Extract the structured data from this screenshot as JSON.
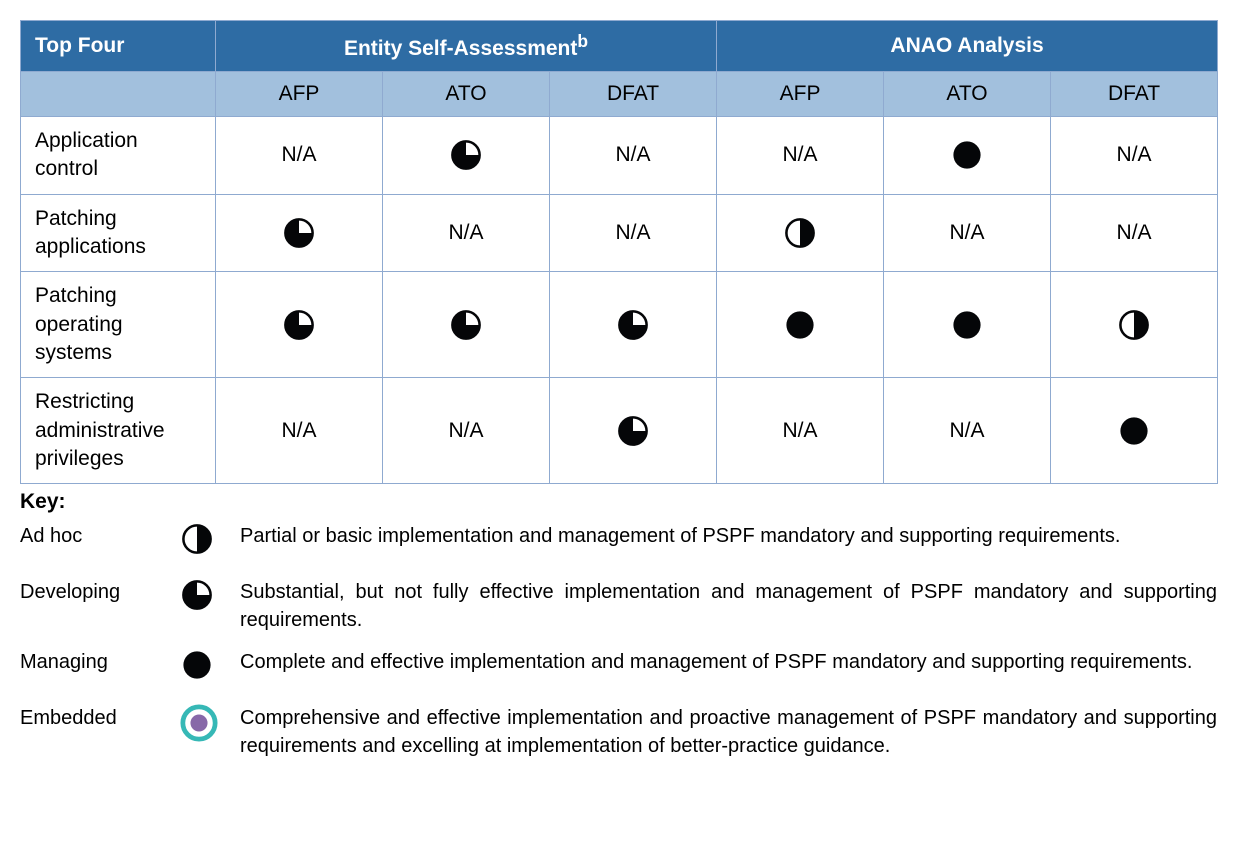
{
  "colors": {
    "header_dark_bg": "#2e6ca4",
    "header_dark_text": "#ffffff",
    "header_light_bg": "#a2c0dd",
    "header_light_text": "#000000",
    "border": "#8faad0",
    "icon_fill": "#050608",
    "embedded_outer": "#36b8b6",
    "embedded_inner": "#8768a8"
  },
  "table": {
    "top_left": "Top Four",
    "group_headers": [
      "Entity Self-Assessment",
      "ANAO Analysis"
    ],
    "superscript": "b",
    "sub_headers": [
      "AFP",
      "ATO",
      "DFAT",
      "AFP",
      "ATO",
      "DFAT"
    ],
    "rows": [
      {
        "label": "Application control",
        "cells": [
          "na",
          "developing",
          "na",
          "na",
          "managing",
          "na"
        ]
      },
      {
        "label": "Patching applications",
        "cells": [
          "developing",
          "na",
          "na",
          "adhoc",
          "na",
          "na"
        ]
      },
      {
        "label": "Patching operating systems",
        "cells": [
          "developing",
          "developing",
          "developing",
          "managing",
          "managing",
          "adhoc"
        ]
      },
      {
        "label": "Restricting administrative privileges",
        "cells": [
          "na",
          "na",
          "developing",
          "na",
          "na",
          "managing"
        ]
      }
    ],
    "na_text": "N/A"
  },
  "key": {
    "title": "Key:",
    "items": [
      {
        "label": "Ad hoc",
        "icon": "adhoc",
        "desc": "Partial or basic implementation and management of PSPF mandatory and supporting requirements."
      },
      {
        "label": "Developing",
        "icon": "developing",
        "desc": "Substantial, but not fully effective implementation and management of PSPF mandatory and supporting requirements."
      },
      {
        "label": "Managing",
        "icon": "managing",
        "desc": "Complete and effective implementation and management of PSPF mandatory and supporting requirements."
      },
      {
        "label": "Embedded",
        "icon": "embedded",
        "desc": "Comprehensive and effective implementation and proactive management of PSPF mandatory and supporting requirements and excelling at implementation of better-practice guidance."
      }
    ]
  },
  "col_widths": {
    "first": 195,
    "rest": 167
  }
}
